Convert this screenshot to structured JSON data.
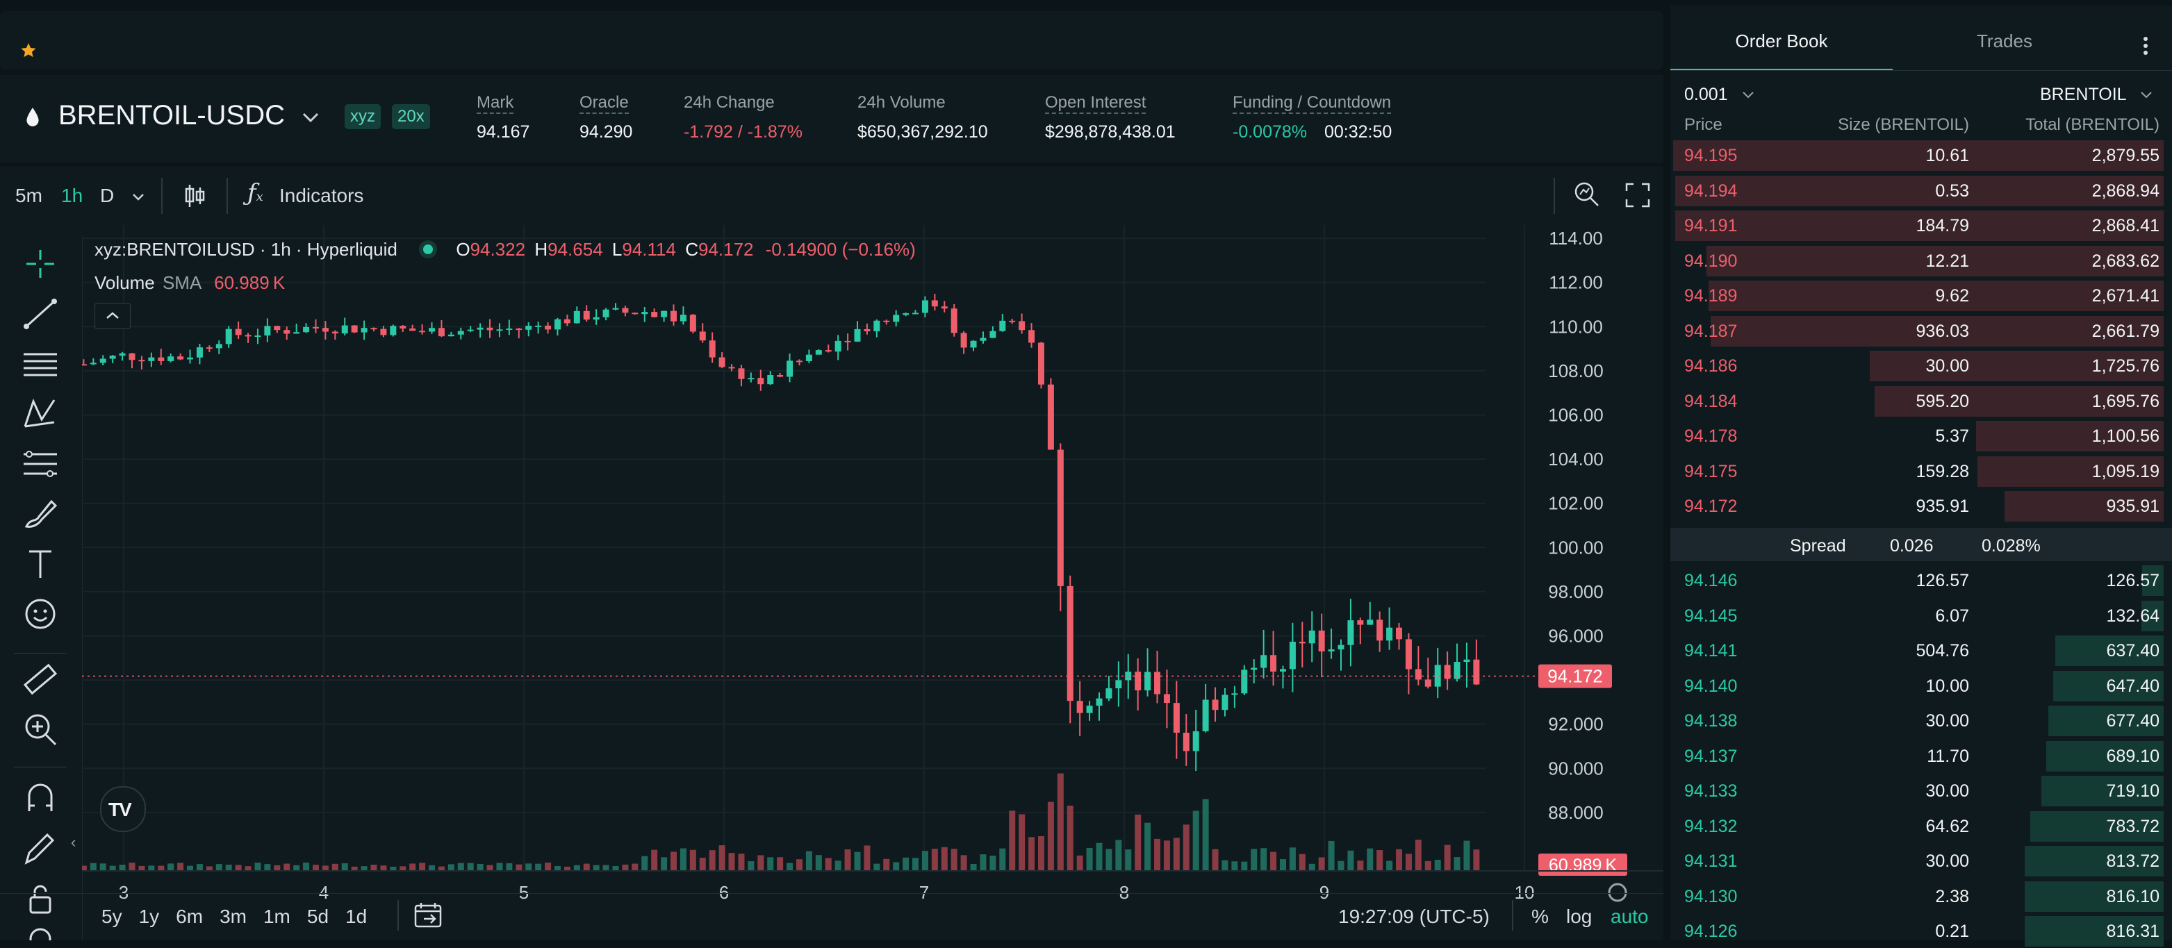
{
  "header": {
    "symbol": "BRENTOIL-USDC",
    "badge_venue": "xyz",
    "badge_leverage": "20x",
    "stats": [
      {
        "label": "Mark",
        "value": "94.167"
      },
      {
        "label": "Oracle",
        "value": "94.290"
      },
      {
        "label": "24h Change",
        "value": "-1.792 / -1.87%"
      },
      {
        "label": "24h Volume",
        "value": "$650,367,292.10"
      },
      {
        "label": "Open Interest",
        "value": "$298,878,438.01"
      },
      {
        "label": "Funding / Countdown",
        "value": "-0.0078%",
        "value2": "00:32:50"
      }
    ]
  },
  "chart_toolbar": {
    "intervals": [
      "5m",
      "1h",
      "D"
    ],
    "active_interval": "1h",
    "indicators_label": "Indicators"
  },
  "legend": {
    "title": "xyz:BRENTOILUSD · 1h · Hyperliquid",
    "o_label": "O",
    "o": "94.322",
    "h_label": "H",
    "h": "94.654",
    "l_label": "L",
    "l": "94.114",
    "c_label": "C",
    "c": "94.172",
    "change": "-0.14900 (−0.16%)",
    "volume_label": "Volume",
    "volume_ind": "SMA",
    "volume_value": "60.989 K"
  },
  "chart_data": {
    "type": "candlestick",
    "title": "xyz:BRENTOILUSD · 1h · Hyperliquid",
    "y_ticks": [
      "114.00",
      "112.00",
      "110.00",
      "108.00",
      "106.00",
      "104.00",
      "102.00",
      "100.00",
      "98.000",
      "96.000",
      "94.000",
      "92.000",
      "90.000",
      "88.000"
    ],
    "ylim": [
      86.3,
      114.6
    ],
    "x_ticks": [
      "3",
      "4",
      "5",
      "6",
      "7",
      "8",
      "9",
      "10"
    ],
    "last_price": "94.172",
    "last_volume": "60.989 K",
    "price_path": [
      {
        "day": 2.8,
        "close": 108.3
      },
      {
        "day": 3.0,
        "close": 108.7
      },
      {
        "day": 3.3,
        "close": 108.6
      },
      {
        "day": 3.5,
        "close": 109.6
      },
      {
        "day": 4.0,
        "close": 110.0
      },
      {
        "day": 4.5,
        "close": 109.8
      },
      {
        "day": 5.0,
        "close": 109.9
      },
      {
        "day": 5.3,
        "close": 110.5
      },
      {
        "day": 5.6,
        "close": 110.7
      },
      {
        "day": 5.8,
        "close": 110.3
      },
      {
        "day": 6.0,
        "close": 108.2
      },
      {
        "day": 6.2,
        "close": 107.4
      },
      {
        "day": 6.4,
        "close": 108.6
      },
      {
        "day": 6.7,
        "close": 110.0
      },
      {
        "day": 7.0,
        "close": 111.0
      },
      {
        "day": 7.1,
        "close": 111.0
      },
      {
        "day": 7.2,
        "close": 108.9
      },
      {
        "day": 7.4,
        "close": 110.2
      },
      {
        "day": 7.55,
        "close": 109.4
      },
      {
        "day": 7.65,
        "close": 103.4
      },
      {
        "day": 7.72,
        "close": 92.8
      },
      {
        "day": 7.9,
        "close": 94.0
      },
      {
        "day": 8.2,
        "close": 93.6
      },
      {
        "day": 8.3,
        "close": 90.8
      },
      {
        "day": 8.4,
        "close": 92.8
      },
      {
        "day": 8.6,
        "close": 94.2
      },
      {
        "day": 8.9,
        "close": 95.6
      },
      {
        "day": 9.1,
        "close": 96.2
      },
      {
        "day": 9.4,
        "close": 96.4
      },
      {
        "day": 9.45,
        "close": 93.6
      },
      {
        "day": 9.55,
        "close": 94.6
      },
      {
        "day": 9.8,
        "close": 94.172
      }
    ]
  },
  "chart_footer": {
    "ranges": [
      "5y",
      "1y",
      "6m",
      "3m",
      "1m",
      "5d",
      "1d"
    ],
    "time": "19:27:09 (UTC-5)",
    "percent": "%",
    "log": "log",
    "auto": "auto"
  },
  "orderbook": {
    "tabs": [
      "Order Book",
      "Trades"
    ],
    "active_tab": "Order Book",
    "tick_size": "0.001",
    "unit": "BRENTOIL",
    "columns": [
      "Price",
      "Size (BRENTOIL)",
      "Total (BRENTOIL)"
    ],
    "asks": [
      {
        "price": "94.195",
        "size": "10.61",
        "total": "2,879.55",
        "depth": 1.0
      },
      {
        "price": "94.194",
        "size": "0.53",
        "total": "2,868.94",
        "depth": 0.996
      },
      {
        "price": "94.191",
        "size": "184.79",
        "total": "2,868.41",
        "depth": 0.996
      },
      {
        "price": "94.190",
        "size": "12.21",
        "total": "2,683.62",
        "depth": 0.932
      },
      {
        "price": "94.189",
        "size": "9.62",
        "total": "2,671.41",
        "depth": 0.928
      },
      {
        "price": "94.187",
        "size": "936.03",
        "total": "2,661.79",
        "depth": 0.924
      },
      {
        "price": "94.186",
        "size": "30.00",
        "total": "1,725.76",
        "depth": 0.599
      },
      {
        "price": "94.184",
        "size": "595.20",
        "total": "1,695.76",
        "depth": 0.589
      },
      {
        "price": "94.178",
        "size": "5.37",
        "total": "1,100.56",
        "depth": 0.382
      },
      {
        "price": "94.175",
        "size": "159.28",
        "total": "1,095.19",
        "depth": 0.38
      },
      {
        "price": "94.172",
        "size": "935.91",
        "total": "935.91",
        "depth": 0.325
      }
    ],
    "spread_label": "Spread",
    "spread_value": "0.026",
    "spread_pct": "0.028%",
    "bids": [
      {
        "price": "94.146",
        "size": "126.57",
        "total": "126.57",
        "depth": 0.044
      },
      {
        "price": "94.145",
        "size": "6.07",
        "total": "132.64",
        "depth": 0.046
      },
      {
        "price": "94.141",
        "size": "504.76",
        "total": "637.40",
        "depth": 0.221
      },
      {
        "price": "94.140",
        "size": "10.00",
        "total": "647.40",
        "depth": 0.225
      },
      {
        "price": "94.138",
        "size": "30.00",
        "total": "677.40",
        "depth": 0.235
      },
      {
        "price": "94.137",
        "size": "11.70",
        "total": "689.10",
        "depth": 0.239
      },
      {
        "price": "94.133",
        "size": "30.00",
        "total": "719.10",
        "depth": 0.25
      },
      {
        "price": "94.132",
        "size": "64.62",
        "total": "783.72",
        "depth": 0.272
      },
      {
        "price": "94.131",
        "size": "30.00",
        "total": "813.72",
        "depth": 0.283
      },
      {
        "price": "94.130",
        "size": "2.38",
        "total": "816.10",
        "depth": 0.283
      },
      {
        "price": "94.126",
        "size": "0.21",
        "total": "816.31",
        "depth": 0.283
      }
    ]
  },
  "colors": {
    "up": "#2bc9a6",
    "down": "#ef5e6b",
    "bg": "#0b1417",
    "panel": "#0f1a1e",
    "star": "#f5a623"
  }
}
